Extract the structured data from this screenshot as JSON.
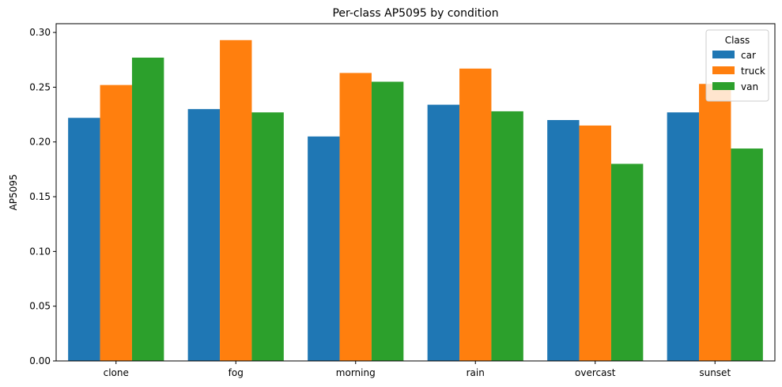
{
  "chart_data": {
    "type": "bar",
    "title": "Per-class AP5095 by condition",
    "xlabel": "",
    "ylabel": "AP5095",
    "categories": [
      "clone",
      "fog",
      "morning",
      "rain",
      "overcast",
      "sunset"
    ],
    "series": [
      {
        "name": "car",
        "color": "#1f77b4",
        "values": [
          0.222,
          0.23,
          0.205,
          0.234,
          0.22,
          0.227
        ]
      },
      {
        "name": "truck",
        "color": "#ff7f0e",
        "values": [
          0.252,
          0.293,
          0.263,
          0.267,
          0.215,
          0.253
        ]
      },
      {
        "name": "van",
        "color": "#2ca02c",
        "values": [
          0.277,
          0.227,
          0.255,
          0.228,
          0.18,
          0.194
        ]
      }
    ],
    "ylim": [
      0,
      0.308
    ],
    "yticks": [
      "0.00",
      "0.05",
      "0.10",
      "0.15",
      "0.20",
      "0.25",
      "0.30"
    ],
    "legend": {
      "title": "Class",
      "position": "top-right"
    },
    "grid": false
  }
}
